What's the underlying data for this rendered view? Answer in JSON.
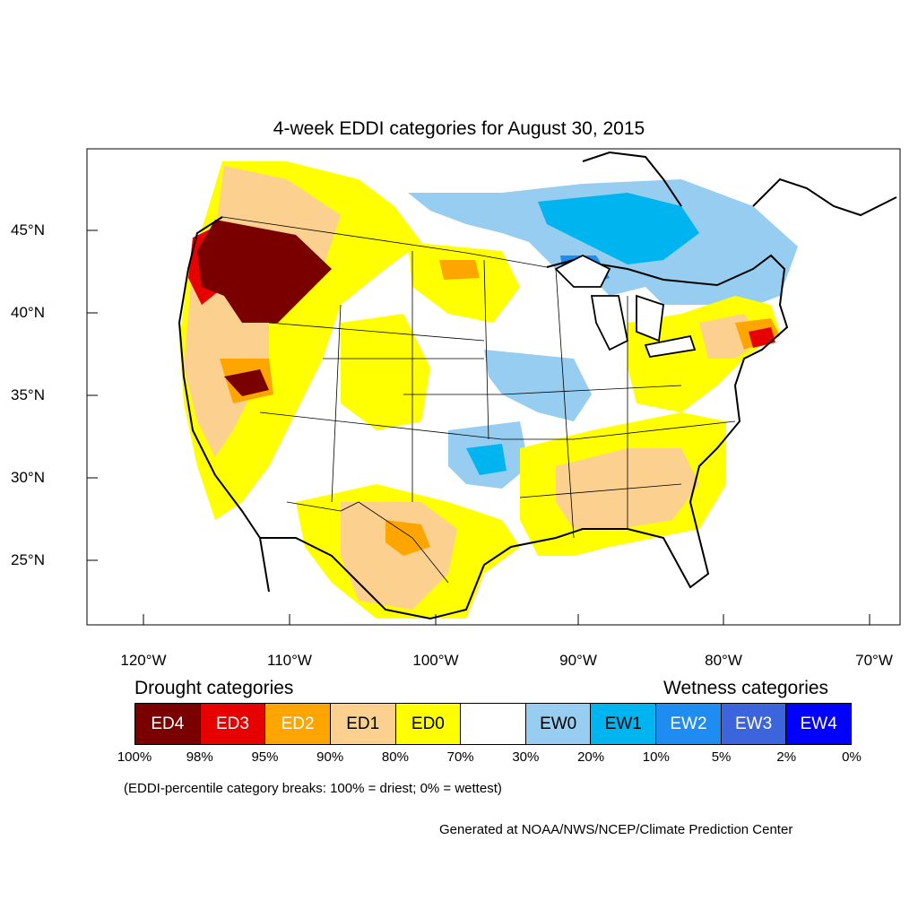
{
  "title": "4-week EDDI categories for August 30, 2015",
  "lat_labels": [
    "45°N",
    "40°N",
    "35°N",
    "30°N",
    "25°N"
  ],
  "lon_labels": [
    "120°W",
    "110°W",
    "100°W",
    "90°W",
    "80°W",
    "70°W"
  ],
  "drought_heading": "Drought categories",
  "wetness_heading": "Wetness categories",
  "legend": [
    {
      "label": "ED4",
      "color": "#7a0000",
      "text_color": "#ffffff"
    },
    {
      "label": "ED3",
      "color": "#e60000",
      "text_color": "#ffffff"
    },
    {
      "label": "ED2",
      "color": "#ffa500",
      "text_color": "#ffffff"
    },
    {
      "label": "ED1",
      "color": "#fcd08f",
      "text_color": "#000000"
    },
    {
      "label": "ED0",
      "color": "#ffff00",
      "text_color": "#000000"
    },
    {
      "label": "",
      "color": "#ffffff",
      "text_color": "#000000"
    },
    {
      "label": "EW0",
      "color": "#96cdf0",
      "text_color": "#000000"
    },
    {
      "label": "EW1",
      "color": "#00b4f0",
      "text_color": "#000000"
    },
    {
      "label": "EW2",
      "color": "#1e8cf0",
      "text_color": "#ffffff"
    },
    {
      "label": "EW3",
      "color": "#3c64dc",
      "text_color": "#ffffff"
    },
    {
      "label": "EW4",
      "color": "#0000ff",
      "text_color": "#ffffff"
    }
  ],
  "breaks": [
    "100%",
    "98%",
    "95%",
    "90%",
    "80%",
    "70%",
    "30%",
    "20%",
    "10%",
    "5%",
    "2%",
    "0%"
  ],
  "note": "(EDDI-percentile category breaks: 100% = driest; 0% = wettest)",
  "credit": "Generated at NOAA/NWS/NCEP/Climate Prediction Center"
}
